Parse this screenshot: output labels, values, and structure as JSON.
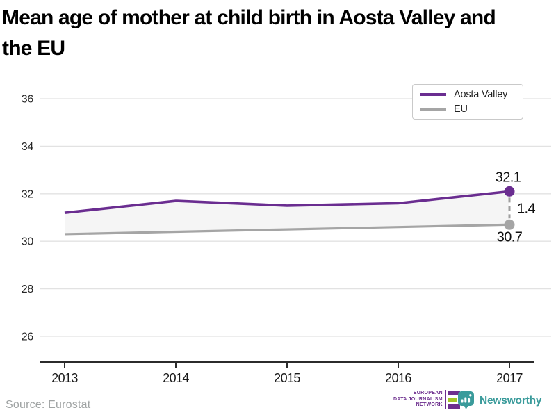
{
  "title": "Mean age of mother at child birth in Aosta Valley and\nthe EU",
  "legend": {
    "items": [
      {
        "label": "Aosta Valley",
        "color": "#6a2d90"
      },
      {
        "label": "EU",
        "color": "#a5a5a5"
      }
    ]
  },
  "chart_data": {
    "type": "line",
    "x": [
      2013,
      2014,
      2015,
      2016,
      2017
    ],
    "series": [
      {
        "name": "Aosta Valley",
        "values": [
          31.2,
          31.7,
          31.5,
          31.6,
          32.1
        ],
        "color": "#6a2d90"
      },
      {
        "name": "EU",
        "values": [
          30.3,
          30.4,
          30.5,
          30.6,
          30.7
        ],
        "color": "#a5a5a5"
      }
    ],
    "yticks": [
      26,
      28,
      30,
      32,
      34,
      36
    ],
    "ylim": [
      24.9,
      37.1
    ],
    "grid": true,
    "legend_position": "top-right",
    "area_fill_between_color": "#f5f5f5",
    "annotations": {
      "end_label_top": "32.1",
      "diff_label": "1.4",
      "end_label_bottom": "30.7"
    }
  },
  "footer": {
    "source": "Source: Eurostat",
    "edjn": {
      "lines": [
        "EUROPEAN",
        "DATA JOURNALISM",
        "NETWORK"
      ],
      "purple": "#6d2f8e",
      "green": "#a3c626"
    },
    "newsworthy": {
      "label": "Newsworthy",
      "color": "#3a9b9b"
    }
  }
}
